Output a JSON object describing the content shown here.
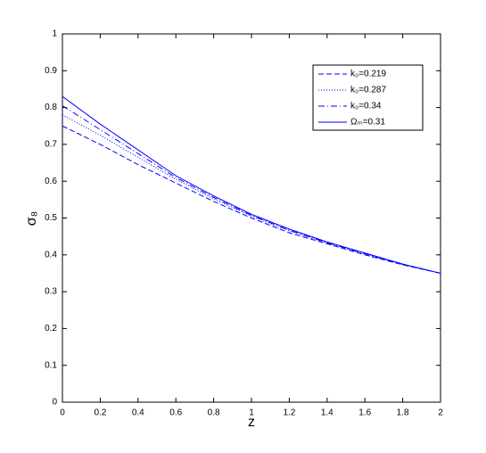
{
  "chart_data": {
    "type": "line",
    "x_label": "z",
    "y_label": "σ₈",
    "x": [
      0,
      0.2,
      0.4,
      0.6,
      0.8,
      1.0,
      1.2,
      1.4,
      1.6,
      1.8,
      2.0
    ],
    "series": [
      {
        "name": "k₀=0.219",
        "color": "#0000ff",
        "dash": "dashed",
        "values": [
          0.75,
          0.7,
          0.645,
          0.595,
          0.545,
          0.5,
          0.46,
          0.43,
          0.4,
          0.373,
          0.35
        ]
      },
      {
        "name": "k₀=0.287",
        "color": "#0000ff",
        "dash": "dotted",
        "values": [
          0.78,
          0.725,
          0.665,
          0.605,
          0.552,
          0.505,
          0.465,
          0.432,
          0.402,
          0.374,
          0.35
        ]
      },
      {
        "name": "k₀=0.34",
        "color": "#0000ff",
        "dash": "dashdot",
        "values": [
          0.805,
          0.74,
          0.675,
          0.61,
          0.556,
          0.507,
          0.467,
          0.433,
          0.403,
          0.374,
          0.35
        ]
      },
      {
        "name": "Ωₘ=0.31",
        "color": "#0000ff",
        "dash": "solid",
        "values": [
          0.83,
          0.755,
          0.685,
          0.615,
          0.56,
          0.51,
          0.47,
          0.435,
          0.405,
          0.375,
          0.35
        ]
      }
    ],
    "xlim": [
      0,
      2
    ],
    "xticks": [
      0,
      0.2,
      0.4,
      0.6,
      0.8,
      1,
      1.2,
      1.4,
      1.6,
      1.8,
      2
    ],
    "ylim": [
      0,
      1
    ],
    "yticks": [
      0,
      0.1,
      0.2,
      0.3,
      0.4,
      0.5,
      0.6,
      0.7,
      0.8,
      0.9,
      1
    ],
    "grid": false,
    "legend": "upper right"
  }
}
